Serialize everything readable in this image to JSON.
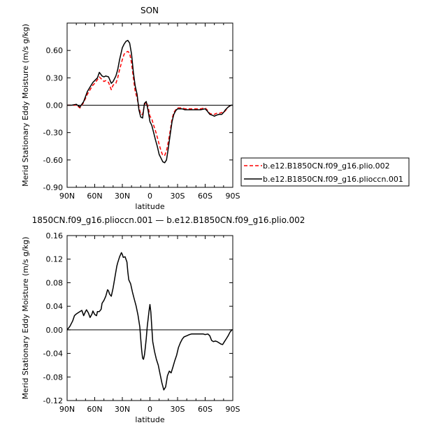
{
  "figure": {
    "top_title": "SON",
    "bottom_title": "1850CN.f09_g16.plioccn.001 — b.e12.B1850CN.f09_g16.plio.002"
  },
  "chart_data": [
    {
      "type": "line",
      "title": "SON",
      "xlabel": "latitude",
      "ylabel": "Merid Stationary Eddy Moisture (m/s g/kg)",
      "xlim": [
        90,
        -90
      ],
      "ylim": [
        -0.9,
        0.9
      ],
      "x_ticks": [
        90,
        60,
        30,
        0,
        -30,
        -60,
        -90
      ],
      "x_tick_labels": [
        "90N",
        "60N",
        "30N",
        "0",
        "30S",
        "60S",
        "90S"
      ],
      "y_ticks": [
        0.6,
        0.3,
        0.0,
        -0.3,
        -0.6,
        -0.9
      ],
      "y_tick_labels": [
        "0.60",
        "0.30",
        "0.00",
        "-0.30",
        "-0.60",
        "-0.90"
      ],
      "legend_position": "right",
      "series": [
        {
          "name": "b.e12.B1850CN.f09_g16.plio.002",
          "color": "#ff0000",
          "dash": "dashed",
          "x": [
            90,
            85,
            80,
            76,
            72,
            68,
            65,
            62,
            60,
            57,
            55,
            52,
            50,
            48,
            45,
            42,
            40,
            37,
            35,
            33,
            30,
            28,
            26,
            24,
            22,
            20,
            18,
            16,
            14,
            12,
            10,
            8,
            6,
            4,
            2,
            0,
            -2,
            -4,
            -6,
            -8,
            -10,
            -12,
            -14,
            -16,
            -18,
            -20,
            -22,
            -24,
            -26,
            -28,
            -30,
            -32,
            -35,
            -38,
            -40,
            -45,
            -50,
            -55,
            -60,
            -62,
            -65,
            -68,
            -70,
            -72,
            -75,
            -78,
            -80,
            -82,
            -85,
            -88,
            -90
          ],
          "y": [
            0.0,
            0.0,
            0.0,
            -0.03,
            0.03,
            0.12,
            0.17,
            0.22,
            0.24,
            0.28,
            0.31,
            0.28,
            0.26,
            0.27,
            0.25,
            0.17,
            0.22,
            0.24,
            0.3,
            0.39,
            0.5,
            0.56,
            0.58,
            0.59,
            0.57,
            0.46,
            0.3,
            0.15,
            0.08,
            -0.02,
            -0.1,
            -0.1,
            0.0,
            0.04,
            -0.02,
            -0.12,
            -0.15,
            -0.22,
            -0.28,
            -0.35,
            -0.43,
            -0.5,
            -0.55,
            -0.55,
            -0.5,
            -0.4,
            -0.28,
            -0.15,
            -0.08,
            -0.05,
            -0.03,
            -0.03,
            -0.03,
            -0.04,
            -0.04,
            -0.04,
            -0.04,
            -0.04,
            -0.03,
            -0.05,
            -0.09,
            -0.1,
            -0.1,
            -0.09,
            -0.09,
            -0.08,
            -0.08,
            -0.06,
            -0.02,
            0.0,
            0.0
          ]
        },
        {
          "name": "b.e12.B1850CN.f09_g16.plioccn.001",
          "color": "#000000",
          "dash": "solid",
          "x": [
            90,
            85,
            80,
            76,
            72,
            68,
            65,
            62,
            60,
            57,
            55,
            52,
            50,
            48,
            45,
            42,
            40,
            37,
            35,
            33,
            30,
            28,
            26,
            24,
            22,
            20,
            18,
            16,
            14,
            12,
            10,
            8,
            6,
            4,
            2,
            0,
            -2,
            -4,
            -6,
            -8,
            -10,
            -12,
            -14,
            -16,
            -18,
            -20,
            -22,
            -24,
            -26,
            -28,
            -30,
            -32,
            -35,
            -38,
            -40,
            -45,
            -50,
            -55,
            -60,
            -62,
            -65,
            -68,
            -70,
            -72,
            -75,
            -78,
            -80,
            -82,
            -85,
            -88,
            -90
          ],
          "y": [
            0.0,
            0.0,
            0.01,
            -0.02,
            0.04,
            0.15,
            0.2,
            0.25,
            0.27,
            0.3,
            0.36,
            0.32,
            0.31,
            0.32,
            0.31,
            0.24,
            0.26,
            0.32,
            0.39,
            0.5,
            0.63,
            0.67,
            0.7,
            0.71,
            0.68,
            0.56,
            0.36,
            0.21,
            0.12,
            -0.05,
            -0.13,
            -0.14,
            0.02,
            0.04,
            -0.06,
            -0.18,
            -0.22,
            -0.3,
            -0.38,
            -0.45,
            -0.54,
            -0.58,
            -0.62,
            -0.63,
            -0.6,
            -0.47,
            -0.32,
            -0.18,
            -0.1,
            -0.06,
            -0.04,
            -0.04,
            -0.04,
            -0.05,
            -0.05,
            -0.05,
            -0.05,
            -0.05,
            -0.04,
            -0.06,
            -0.1,
            -0.11,
            -0.12,
            -0.11,
            -0.1,
            -0.1,
            -0.08,
            -0.05,
            -0.02,
            0.0,
            0.0
          ]
        }
      ]
    },
    {
      "type": "line",
      "title": "1850CN.f09_g16.plioccn.001 — b.e12.B1850CN.f09_g16.plio.002",
      "xlabel": "latitude",
      "ylabel": "Merid Stationary Eddy Moisture (m/s g/kg)",
      "xlim": [
        90,
        -90
      ],
      "ylim": [
        -0.12,
        0.16
      ],
      "x_ticks": [
        90,
        60,
        30,
        0,
        -30,
        -60,
        -90
      ],
      "x_tick_labels": [
        "90N",
        "60N",
        "30N",
        "0",
        "30S",
        "60S",
        "90S"
      ],
      "y_ticks": [
        0.16,
        0.12,
        0.08,
        0.04,
        0.0,
        -0.04,
        -0.08,
        -0.12
      ],
      "y_tick_labels": [
        "0.16",
        "0.12",
        "0.08",
        "0.04",
        "0.00",
        "-0.04",
        "-0.08",
        "-0.12"
      ],
      "series": [
        {
          "color": "#000000",
          "dash": "solid",
          "x": [
            90,
            87,
            84,
            82,
            80,
            78,
            76,
            74,
            72,
            70,
            69,
            67,
            65,
            63,
            62,
            60,
            58,
            57,
            55,
            53,
            52,
            50,
            48,
            46,
            45,
            44,
            42,
            40,
            38,
            36,
            35,
            33,
            31,
            30,
            29,
            27,
            25,
            24,
            23,
            21,
            19,
            17,
            15,
            13,
            11,
            10,
            9,
            8,
            7,
            6,
            5,
            4,
            3,
            1,
            0,
            -1,
            -2,
            -3,
            -5,
            -7,
            -9,
            -11,
            -13,
            -15,
            -17,
            -18,
            -19,
            -21,
            -23,
            -25,
            -27,
            -29,
            -31,
            -33,
            -35,
            -37,
            -40,
            -43,
            -45,
            -48,
            -50,
            -55,
            -58,
            -60,
            -63,
            -65,
            -67,
            -69,
            -71,
            -73,
            -75,
            -77,
            -79,
            -81,
            -83,
            -85,
            -87,
            -89,
            -90
          ],
          "y": [
            0.0,
            0.006,
            0.015,
            0.024,
            0.027,
            0.029,
            0.031,
            0.033,
            0.024,
            0.031,
            0.034,
            0.029,
            0.021,
            0.027,
            0.032,
            0.026,
            0.024,
            0.031,
            0.031,
            0.035,
            0.045,
            0.05,
            0.057,
            0.068,
            0.066,
            0.061,
            0.057,
            0.071,
            0.09,
            0.108,
            0.114,
            0.124,
            0.131,
            0.128,
            0.123,
            0.124,
            0.115,
            0.098,
            0.085,
            0.078,
            0.064,
            0.052,
            0.04,
            0.025,
            0.005,
            -0.015,
            -0.035,
            -0.048,
            -0.05,
            -0.043,
            -0.03,
            -0.015,
            0.005,
            0.032,
            0.043,
            0.03,
            0.005,
            -0.02,
            -0.037,
            -0.05,
            -0.06,
            -0.075,
            -0.09,
            -0.102,
            -0.097,
            -0.088,
            -0.078,
            -0.07,
            -0.073,
            -0.063,
            -0.052,
            -0.043,
            -0.03,
            -0.022,
            -0.016,
            -0.012,
            -0.01,
            -0.008,
            -0.007,
            -0.007,
            -0.007,
            -0.007,
            -0.007,
            -0.008,
            -0.007,
            -0.01,
            -0.018,
            -0.02,
            -0.019,
            -0.02,
            -0.022,
            -0.024,
            -0.025,
            -0.02,
            -0.015,
            -0.01,
            -0.004,
            0.0,
            0.0
          ]
        }
      ]
    }
  ]
}
